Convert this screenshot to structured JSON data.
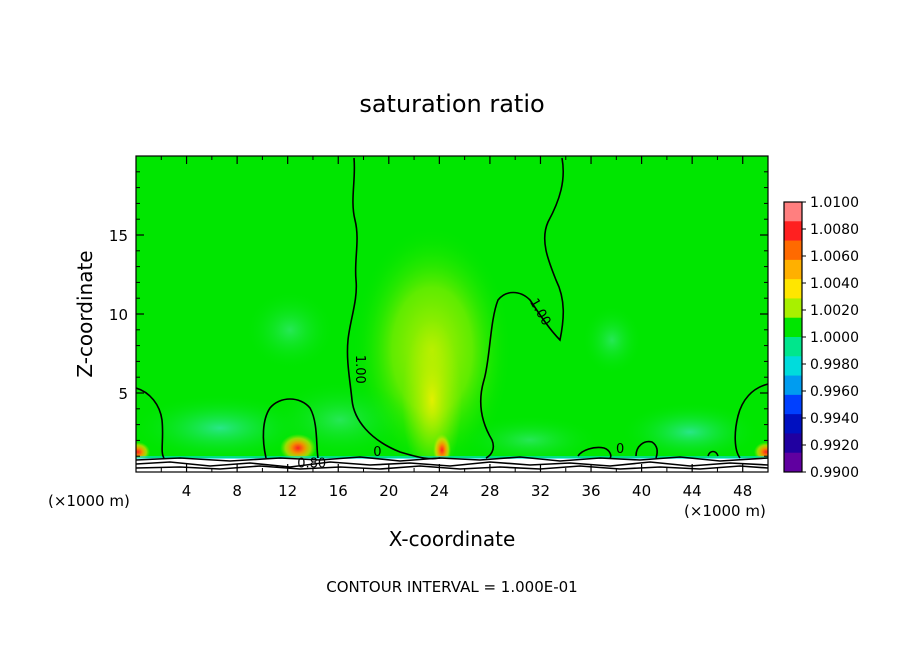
{
  "chart_data": {
    "type": "heatmap",
    "title": "saturation ratio",
    "xlabel": "X-coordinate",
    "ylabel": "Z-coordinate",
    "x_unit_left": "(×1000 m)",
    "x_unit_right": "(×1000 m)",
    "xlim": [
      0,
      50
    ],
    "ylim": [
      0,
      20
    ],
    "xticks": [
      4,
      8,
      12,
      16,
      20,
      24,
      28,
      32,
      36,
      40,
      44,
      48
    ],
    "yticks": [
      5,
      10,
      15
    ],
    "footer": "CONTOUR INTERVAL = 1.000E-01",
    "colorbar": {
      "labels": [
        "1.0100",
        "1.0080",
        "1.0060",
        "1.0040",
        "1.0020",
        "1.0000",
        "0.9980",
        "0.9960",
        "0.9940",
        "0.9920",
        "0.9900"
      ],
      "colors": [
        "#ff7f7f",
        "#ff2020",
        "#ff6a00",
        "#ffb000",
        "#ffe600",
        "#a8f000",
        "#00e600",
        "#00e68c",
        "#00dcdc",
        "#009cf0",
        "#0040ff",
        "#0010c0",
        "#2000a0",
        "#6000a0"
      ]
    },
    "contour_labels": [
      {
        "text": "1.00",
        "x": 17.4,
        "z": 6.5
      },
      {
        "text": "1.00",
        "x": 31.7,
        "z": 10.0
      },
      {
        "text": "0.80",
        "x": 13.9,
        "z": 0.3
      },
      {
        "text": "0",
        "x": 38.3,
        "z": 1.2
      },
      {
        "text": "0",
        "x": 19.1,
        "z": 1.0
      }
    ]
  }
}
